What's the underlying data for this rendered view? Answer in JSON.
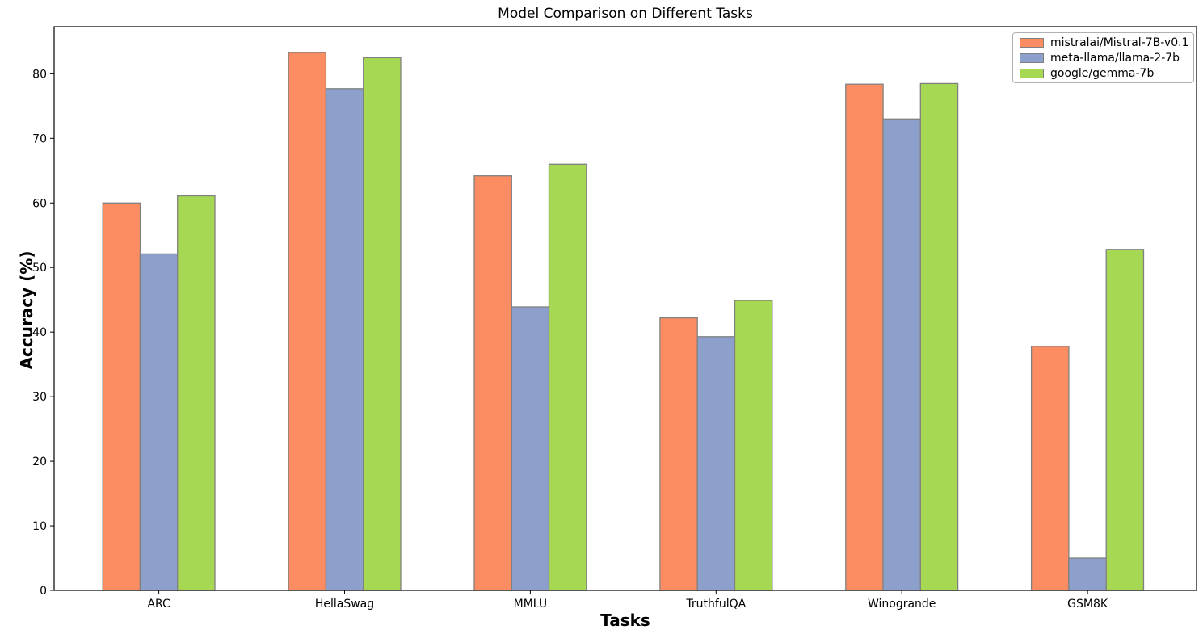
{
  "chart_data": {
    "type": "bar",
    "title": "Model Comparison on Different Tasks",
    "xlabel": "Tasks",
    "ylabel": "Accuracy (%)",
    "categories": [
      "ARC",
      "HellaSwag",
      "MMLU",
      "TruthfulQA",
      "Winogrande",
      "GSM8K"
    ],
    "series": [
      {
        "name": "mistralai/Mistral-7B-v0.1",
        "color": "#FC8D62",
        "values": [
          60.0,
          83.3,
          64.2,
          42.2,
          78.4,
          37.8
        ]
      },
      {
        "name": "meta-llama/llama-2-7b",
        "color": "#8DA0CB",
        "values": [
          52.1,
          77.7,
          43.9,
          39.3,
          73.0,
          5.0
        ]
      },
      {
        "name": "google/gemma-7b",
        "color": "#A6D854",
        "values": [
          61.1,
          82.5,
          66.0,
          44.9,
          78.5,
          52.8
        ]
      }
    ],
    "bar_edge_color": "#808080",
    "spine_color": "#000000",
    "yticks": [
      0,
      10,
      20,
      30,
      40,
      50,
      60,
      70,
      80
    ],
    "ylim": [
      0,
      87.3
    ],
    "grid": false,
    "legend_position": "upper right"
  }
}
